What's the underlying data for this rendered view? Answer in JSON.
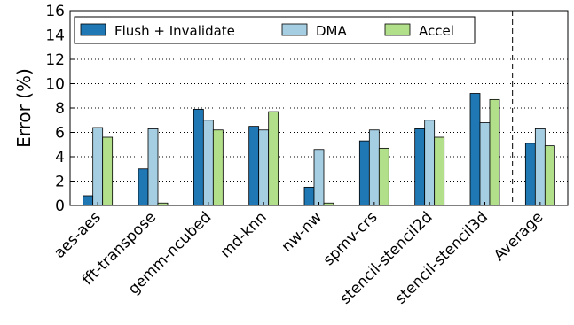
{
  "chart_data": {
    "type": "bar",
    "title": "",
    "xlabel": "",
    "ylabel": "Error (%)",
    "ylim": [
      0,
      16
    ],
    "yticks": [
      0,
      2,
      4,
      6,
      8,
      10,
      12,
      14,
      16
    ],
    "grid": "horizontal dotted",
    "legend_position": "top",
    "categories": [
      "aes-aes",
      "fft-transpose",
      "gemm-ncubed",
      "md-knn",
      "nw-nw",
      "spmv-crs",
      "stencil-stencil2d",
      "stencil-stencil3d",
      "Average"
    ],
    "series": [
      {
        "name": "Flush + Invalidate",
        "color": "#1f77b4",
        "values": [
          0.8,
          3.0,
          7.9,
          6.5,
          1.5,
          5.3,
          6.3,
          9.2,
          5.1
        ]
      },
      {
        "name": "DMA",
        "color": "#a6cee3",
        "values": [
          6.4,
          6.3,
          7.0,
          6.2,
          4.6,
          6.2,
          7.0,
          6.8,
          6.3
        ]
      },
      {
        "name": "Accel",
        "color": "#b2df8a",
        "values": [
          5.6,
          0.2,
          6.2,
          7.7,
          0.2,
          4.7,
          5.6,
          8.7,
          4.9
        ]
      }
    ]
  }
}
